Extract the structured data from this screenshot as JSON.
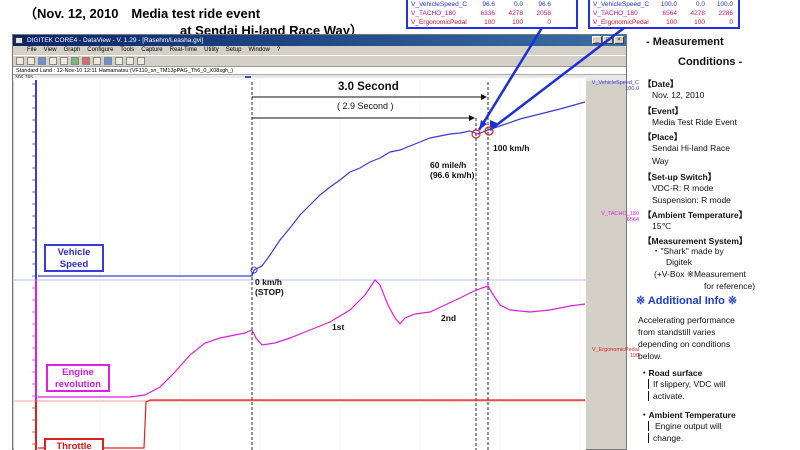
{
  "header": {
    "caption_line1": "（Nov. 12, 2010　Media test ride event",
    "caption_line2": "at Sendai Hi-land Race Way）"
  },
  "readouts": [
    {
      "rows": [
        {
          "name": "V_VehicleSpeed_C",
          "v1": "96.6",
          "v2": "0.0",
          "v3": "96.6"
        },
        {
          "name": "V_TACHO_180",
          "v1": "6336",
          "v2": "4278",
          "v3": "2058"
        },
        {
          "name": "V_ErgonomicPedal",
          "v1": "100",
          "v2": "100",
          "v3": "0"
        }
      ]
    },
    {
      "rows": [
        {
          "name": "V_VehicleSpeed_C",
          "v1": "100.0",
          "v2": "0.0",
          "v3": "100.0"
        },
        {
          "name": "V_TACHO_180",
          "v1": "6564",
          "v2": "4278",
          "v3": "2286"
        },
        {
          "name": "V_ErgonomicPedal",
          "v1": "100",
          "v2": "100",
          "v3": "0"
        }
      ]
    }
  ],
  "window": {
    "title": "DIGITEK CORE4 - DataView - V. 1.29 - [Rasehm/Leasha.gvi]",
    "menu": [
      "File",
      "View",
      "Graph",
      "Configure",
      "Tools",
      "Capture",
      "Real-Time",
      "Utility",
      "Setup",
      "Window",
      "?"
    ],
    "tab_label": "Standard Land   :   12-Nov-10  12:11  Hamamatsu  (VF110_sn_TM13pPAG_Th6_0_X08sgh_)",
    "scroll_label": "306 765"
  },
  "channels": {
    "vehicle_speed": "Vehicle Speed",
    "engine_rev": "Engine revolution",
    "throttle": "Throttle"
  },
  "right_tags": {
    "speed_name": "V_VehicleSpeed_C",
    "speed_val": "100.0",
    "tacho_name": "V_TACHO_180",
    "tacho_val": "6564",
    "pedal_name": "V_ErgonomicPedal",
    "pedal_val": "100"
  },
  "annotations": {
    "three_sec": "3.0 Second",
    "two_nine_sec": "( 2.9 Second )",
    "hundred_kmh": "100 km/h",
    "sixty_mile_1": "60 mile/h",
    "sixty_mile_2": "(96.6 km/h)",
    "zero_kmh_1": "0 km/h",
    "zero_kmh_2": "(STOP)",
    "first_gear": "1st",
    "second_gear": "2nd"
  },
  "info_panel": {
    "title_1": "- Measurement",
    "title_2": "Conditions -",
    "date_label": "【Date】",
    "date_value": "Nov. 12, 2010",
    "event_label": "【Event】",
    "event_value": "Media Test Ride Event",
    "place_label": "【Place】",
    "place_value_1": "Sendai Hi-land Race",
    "place_value_2": "Way",
    "setup_label": "【Set-up Switch】",
    "setup_value_1": "VDC-R: R mode",
    "setup_value_2": "Suspension: R mode",
    "temp_label": "【Ambient Temperature】",
    "temp_value": "15℃",
    "system_label": "【Measurement System】",
    "system_value_1": "・\"Shark\" made by",
    "system_value_2": "Digitek",
    "system_value_3": "(+V-Box  ※Measurement",
    "system_value_4": "for reference)",
    "additional_title": "※ Additional Info ※",
    "para_1": "Accelerating performance",
    "para_2": "from standstill varies",
    "para_3": "depending on conditions",
    "para_4": "below.",
    "road_label": "・Road surface",
    "road_1": "If slippery, VDC will",
    "road_2": "activate.",
    "amb_label": "・Ambient Temperature",
    "amb_1": "Engine output will",
    "amb_2": "change."
  },
  "colors": {
    "speed": "#3b3bdc",
    "rev": "#e01ee0",
    "throttle": "#e02020"
  }
}
